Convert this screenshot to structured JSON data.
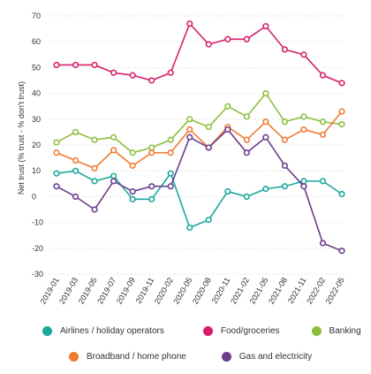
{
  "chart_data": {
    "type": "line",
    "title": "",
    "ylabel": "Net trust (% trust - % don't trust)",
    "xlabel": "",
    "ylim": [
      -30,
      70
    ],
    "yticks": [
      70,
      60,
      50,
      40,
      30,
      20,
      10,
      0,
      -10,
      -20,
      -30
    ],
    "x": [
      "2019-01",
      "2019-03",
      "2019-05",
      "2019-07",
      "2019-09",
      "2019-11",
      "2020-02",
      "2020-05",
      "2020-08",
      "2020-11",
      "2021-02",
      "2021-05",
      "2021-08",
      "2021-11",
      "2022-02",
      "2022-05"
    ],
    "grid": true,
    "legend_position": "bottom",
    "series": [
      {
        "name": "Airlines / holiday operators",
        "color": "#1aa89c",
        "values": [
          9,
          10,
          6,
          8,
          -1,
          -1,
          9,
          -12,
          -9,
          2,
          0,
          3,
          4,
          6,
          6,
          1
        ]
      },
      {
        "name": "Food/groceries",
        "color": "#d61f69",
        "values": [
          51,
          51,
          51,
          48,
          47,
          45,
          48,
          67,
          59,
          61,
          61,
          66,
          57,
          55,
          47,
          44
        ]
      },
      {
        "name": "Banking",
        "color": "#8dbf3c",
        "values": [
          21,
          25,
          22,
          23,
          17,
          19,
          22,
          30,
          27,
          35,
          31,
          40,
          29,
          31,
          29,
          28
        ]
      },
      {
        "name": "Broadband / home phone",
        "color": "#f07a32",
        "values": [
          17,
          14,
          11,
          18,
          12,
          17,
          17,
          26,
          19,
          27,
          22,
          29,
          22,
          26,
          24,
          33
        ]
      },
      {
        "name": "Gas and electricity",
        "color": "#6b3d8e",
        "values": [
          4,
          0,
          -5,
          6,
          2,
          4,
          4,
          23,
          19,
          26,
          17,
          23,
          12,
          4,
          -18,
          -21
        ]
      }
    ]
  }
}
